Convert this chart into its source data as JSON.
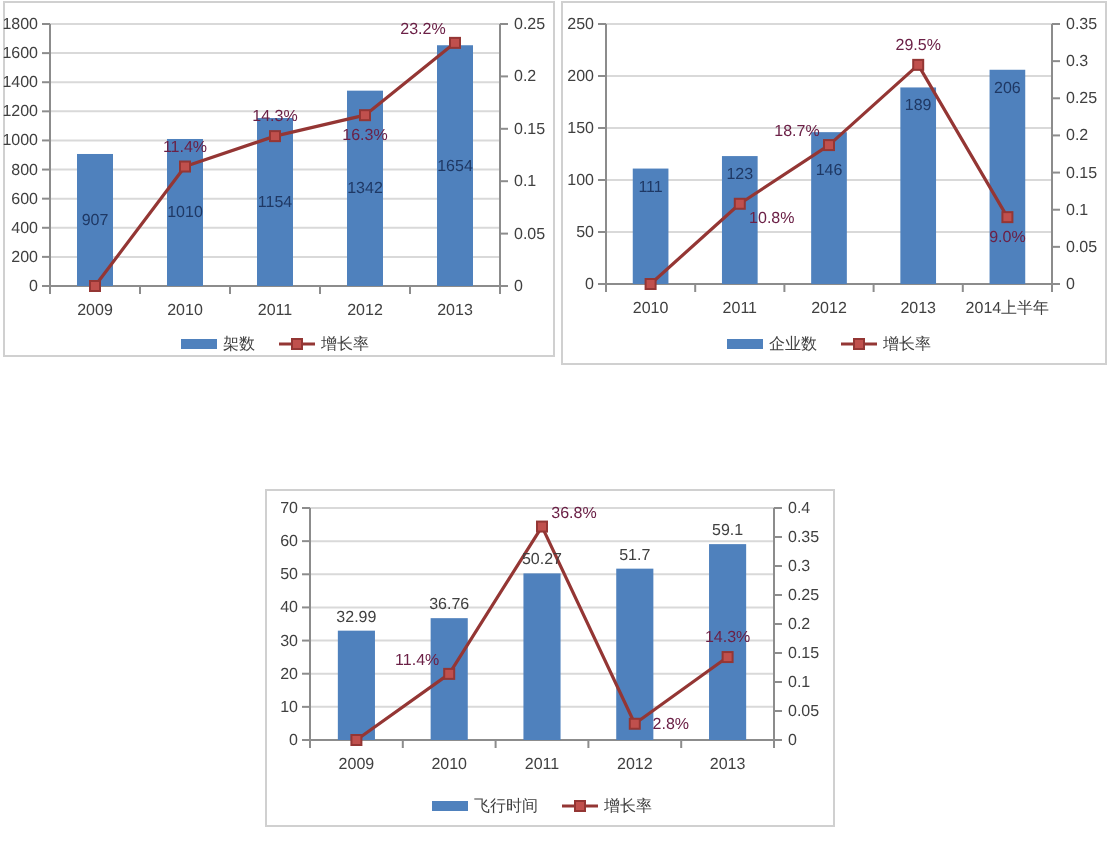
{
  "chart_data": [
    {
      "type": "bar",
      "categories": [
        "2009",
        "2010",
        "2011",
        "2012",
        "2013"
      ],
      "series": [
        {
          "name": "架数",
          "color": "#4f81bd",
          "values": [
            907,
            1010,
            1154,
            1342,
            1654
          ],
          "value_labels": [
            "907",
            "1010",
            "1154",
            "1342",
            "1654"
          ]
        },
        {
          "name": "增长率",
          "type": "line",
          "axis": "y2",
          "color": "#943634",
          "marker": "square",
          "line_style": "solid",
          "values": [
            0,
            0.114,
            0.143,
            0.163,
            0.232
          ],
          "value_labels": [
            null,
            "11.4%",
            "14.3%",
            "16.3%",
            "23.2%"
          ]
        }
      ],
      "ylim": [
        0,
        1800
      ],
      "yticks": [
        0,
        200,
        400,
        600,
        800,
        1000,
        1200,
        1400,
        1600,
        1800
      ],
      "y2lim": [
        0,
        0.25
      ],
      "y2ticks": [
        0,
        0.05,
        0.1,
        0.15,
        0.2,
        0.25
      ],
      "grid": "y",
      "legend": "bottom"
    },
    {
      "type": "bar",
      "categories": [
        "2010",
        "2011",
        "2012",
        "2013",
        "2014上半年"
      ],
      "series": [
        {
          "name": "企业数",
          "color": "#4f81bd",
          "values": [
            111,
            123,
            146,
            189,
            206
          ],
          "value_labels": [
            "111",
            "123",
            "146",
            "189",
            "206"
          ]
        },
        {
          "name": "增长率",
          "type": "line",
          "axis": "y2",
          "color": "#943634",
          "marker": "square",
          "line_style": "solid",
          "values": [
            0,
            0.108,
            0.187,
            0.295,
            0.09
          ],
          "value_labels": [
            null,
            "10.8%",
            "18.7%",
            "29.5%",
            "9.0%"
          ]
        }
      ],
      "ylim": [
        0,
        250
      ],
      "yticks": [
        0,
        50,
        100,
        150,
        200,
        250
      ],
      "y2lim": [
        0,
        0.35
      ],
      "y2ticks": [
        0,
        0.05,
        0.1,
        0.15,
        0.2,
        0.25,
        0.3,
        0.35
      ],
      "grid": "y",
      "legend": "bottom"
    },
    {
      "type": "bar",
      "categories": [
        "2009",
        "2010",
        "2011",
        "2012",
        "2013"
      ],
      "series": [
        {
          "name": "飞行时间",
          "color": "#4f81bd",
          "values": [
            32.99,
            36.76,
            50.27,
            51.7,
            59.1
          ],
          "value_labels": [
            "32.99",
            "36.76",
            "50.27",
            "51.7",
            "59.1"
          ]
        },
        {
          "name": "增长率",
          "type": "line",
          "axis": "y2",
          "color": "#943634",
          "marker": "square",
          "line_style": "solid",
          "values": [
            0,
            0.114,
            0.368,
            0.028,
            0.143
          ],
          "value_labels": [
            null,
            "11.4%",
            "36.8%",
            "2.8%",
            "14.3%"
          ]
        }
      ],
      "ylim": [
        0,
        70
      ],
      "yticks": [
        0,
        10,
        20,
        30,
        40,
        50,
        60,
        70
      ],
      "y2lim": [
        0,
        0.4
      ],
      "y2ticks": [
        0,
        0.05,
        0.1,
        0.15,
        0.2,
        0.25,
        0.3,
        0.35,
        0.4
      ],
      "grid": "y",
      "legend": "bottom"
    }
  ]
}
